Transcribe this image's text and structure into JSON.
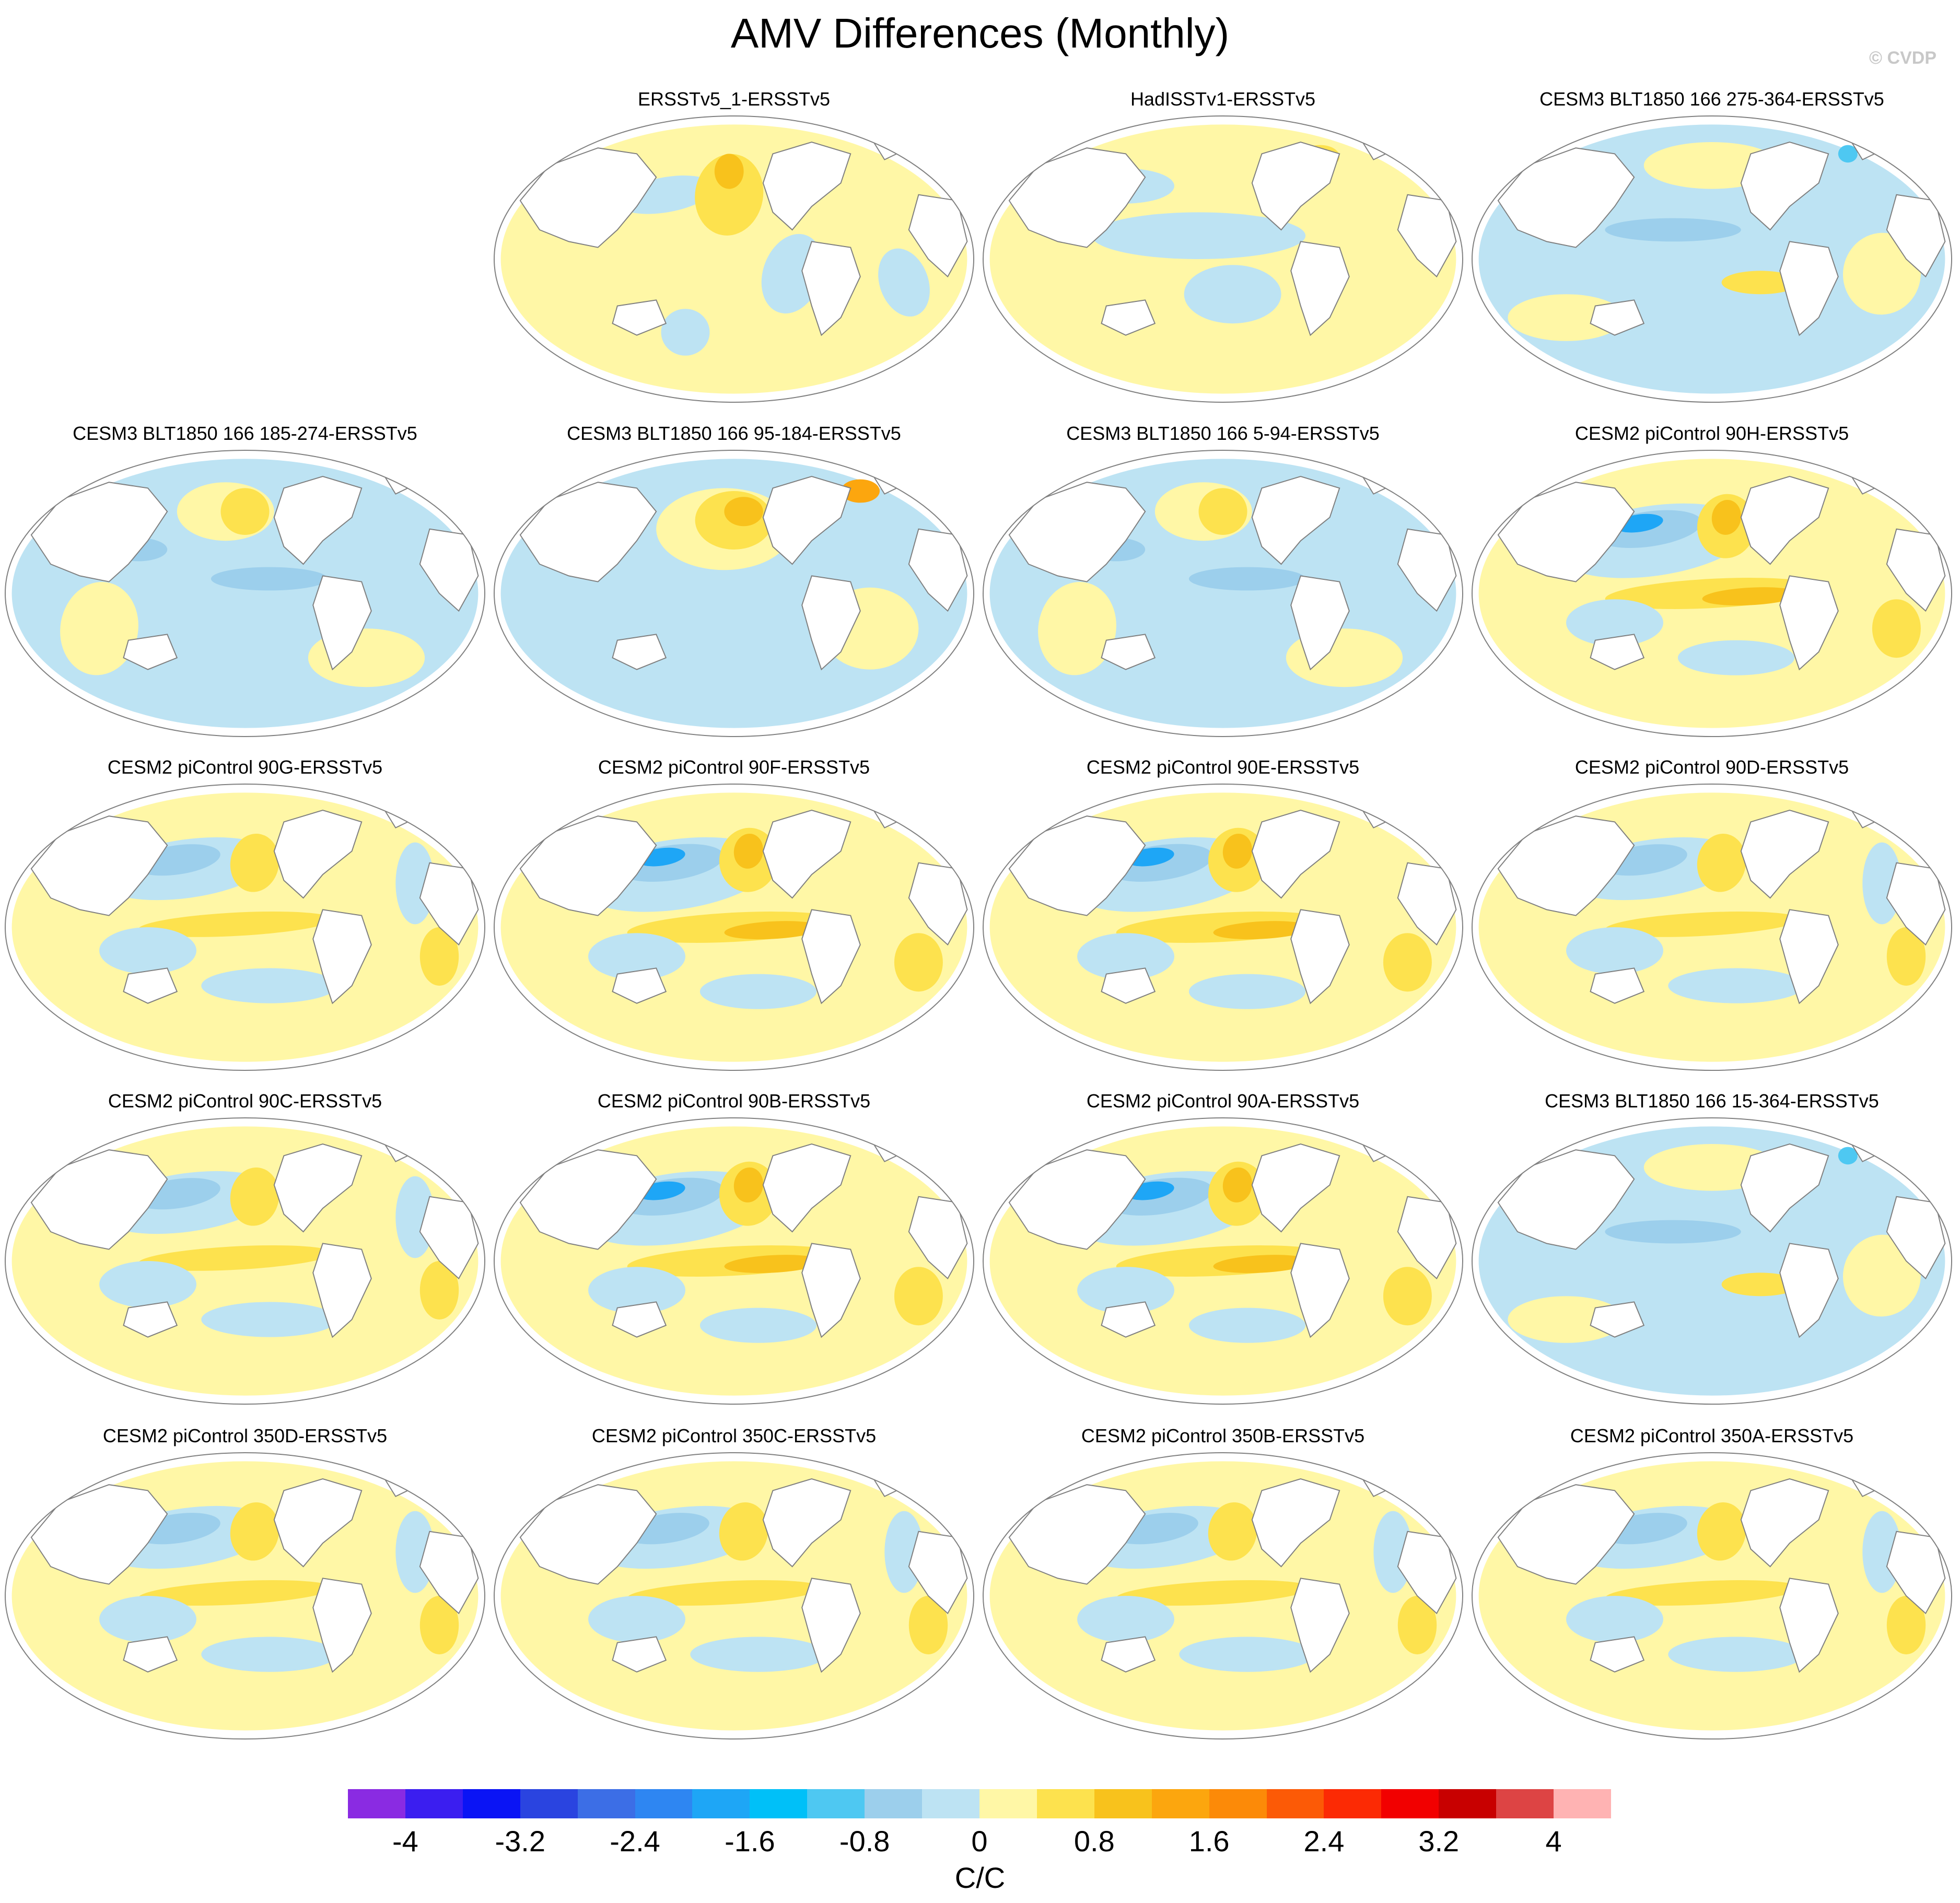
{
  "title": "AMV Differences (Monthly)",
  "watermark": "© CVDP",
  "panels": [
    {
      "label": "ERSSTv5_1-ERSSTv5",
      "pattern": "ersst1"
    },
    {
      "label": "HadISSTv1-ERSSTv5",
      "pattern": "hadisst"
    },
    {
      "label": "CESM3 BLT1850 166 275-364-ERSSTv5",
      "pattern": "cesm3_negative"
    },
    {
      "label": "CESM3 BLT1850 166 185-274-ERSSTv5",
      "pattern": "cesm3_mixed"
    },
    {
      "label": "CESM3 BLT1850 166 95-184-ERSSTv5",
      "pattern": "cesm3_warm_np"
    },
    {
      "label": "CESM3 BLT1850 166 5-94-ERSSTv5",
      "pattern": "cesm3_mixed"
    },
    {
      "label": "CESM2 piControl 90H-ERSSTv5",
      "pattern": "cesm2_strong"
    },
    {
      "label": "CESM2 piControl 90G-ERSSTv5",
      "pattern": "cesm2"
    },
    {
      "label": "CESM2 piControl 90F-ERSSTv5",
      "pattern": "cesm2_strong"
    },
    {
      "label": "CESM2 piControl 90E-ERSSTv5",
      "pattern": "cesm2_strong"
    },
    {
      "label": "CESM2 piControl 90D-ERSSTv5",
      "pattern": "cesm2"
    },
    {
      "label": "CESM2 piControl 90C-ERSSTv5",
      "pattern": "cesm2"
    },
    {
      "label": "CESM2 piControl 90B-ERSSTv5",
      "pattern": "cesm2_strong"
    },
    {
      "label": "CESM2 piControl 90A-ERSSTv5",
      "pattern": "cesm2_strong"
    },
    {
      "label": "CESM3 BLT1850 166 15-364-ERSSTv5",
      "pattern": "cesm3_negative"
    },
    {
      "label": "CESM2 piControl 350D-ERSSTv5",
      "pattern": "cesm2"
    },
    {
      "label": "CESM2 piControl 350C-ERSSTv5",
      "pattern": "cesm2"
    },
    {
      "label": "CESM2 piControl 350B-ERSSTv5",
      "pattern": "cesm2"
    },
    {
      "label": "CESM2 piControl 350A-ERSSTv5",
      "pattern": "cesm2"
    }
  ],
  "colorbar": {
    "unit": "C/C",
    "levels": [
      -4,
      -3.6,
      -3.2,
      -2.8,
      -2.4,
      -2.0,
      -1.6,
      -1.2,
      -0.8,
      -0.4,
      0,
      0.4,
      0.8,
      1.2,
      1.6,
      2.0,
      2.4,
      2.8,
      3.2,
      3.6,
      4
    ],
    "tick_labels": [
      "-4",
      "-3.2",
      "-2.4",
      "-1.6",
      "-0.8",
      "0",
      "0.8",
      "1.6",
      "2.4",
      "3.2",
      "4"
    ],
    "colors": [
      "#8a2be2",
      "#3b1ef0",
      "#0a14f5",
      "#2a44e0",
      "#3c6ee6",
      "#2e86f2",
      "#1ea6f6",
      "#00c0f8",
      "#4ec8f2",
      "#9ccfec",
      "#bde3f3",
      "#fff7a6",
      "#fde24e",
      "#f8c21c",
      "#fca60e",
      "#fc8a08",
      "#fc5a06",
      "#fc2a04",
      "#f20000",
      "#c80000",
      "#dd4444",
      "#ffb3b3"
    ]
  }
}
